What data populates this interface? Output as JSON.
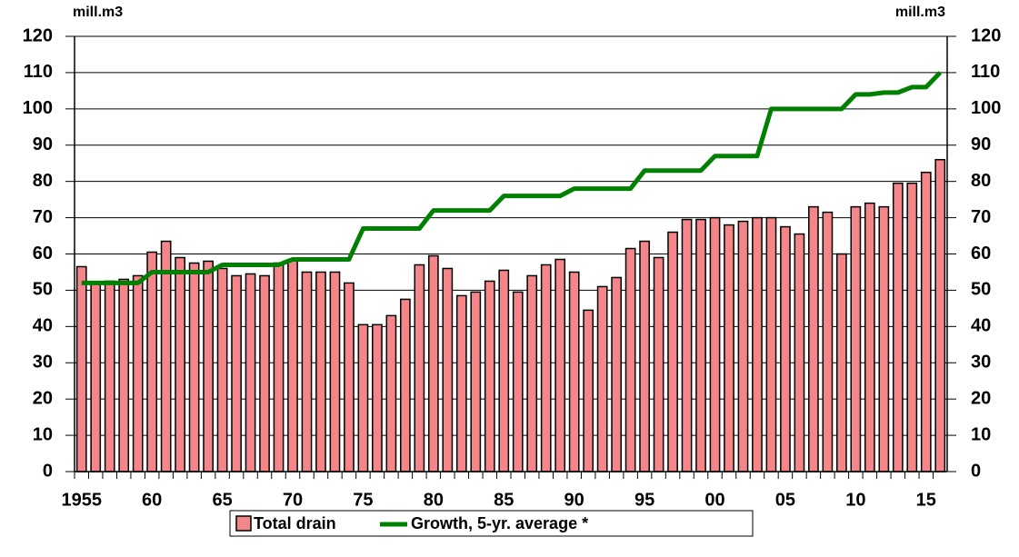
{
  "chart_data": {
    "type": "bar",
    "y_label": "mill.m3",
    "y2_label": "mill.m3",
    "categories": [
      "1955",
      null,
      null,
      null,
      null,
      "60",
      null,
      null,
      null,
      null,
      "65",
      null,
      null,
      null,
      null,
      "70",
      null,
      null,
      null,
      null,
      "75",
      null,
      null,
      null,
      null,
      "80",
      null,
      null,
      null,
      null,
      "85",
      null,
      null,
      null,
      null,
      "90",
      null,
      null,
      null,
      null,
      "95",
      null,
      null,
      null,
      null,
      "00",
      null,
      null,
      null,
      null,
      "05",
      null,
      null,
      null,
      null,
      "10",
      null,
      null,
      null,
      null,
      "15",
      null
    ],
    "series": [
      {
        "name": "Total drain",
        "type": "bar",
        "color": "#f4868a",
        "values": [
          56.5,
          52,
          52.5,
          53,
          54,
          60.5,
          63.5,
          59,
          57.5,
          58,
          56,
          54,
          54.5,
          54,
          57.5,
          58.5,
          55,
          55,
          55,
          52,
          40.5,
          40.5,
          43,
          47.5,
          57,
          59.5,
          56,
          48.5,
          49.5,
          52.5,
          55.5,
          49.5,
          54,
          57,
          58.5,
          55,
          44.5,
          51,
          53.5,
          61.5,
          63.5,
          59,
          66,
          69.5,
          69.5,
          70,
          68,
          69,
          70,
          70,
          67.5,
          65.5,
          73,
          71.5,
          60,
          73,
          74,
          73,
          79.5,
          79.5,
          82.5,
          86
        ]
      },
      {
        "name": "Growth, 5-yr. average *",
        "type": "line",
        "color": "#008000",
        "values": [
          52,
          52,
          52,
          52,
          52,
          55,
          55,
          55,
          55,
          55,
          57,
          57,
          57,
          57,
          57,
          58.5,
          58.5,
          58.5,
          58.5,
          58.5,
          67,
          67,
          67,
          67,
          67,
          72,
          72,
          72,
          72,
          72,
          76,
          76,
          76,
          76,
          76,
          78,
          78,
          78,
          78,
          78,
          83,
          83,
          83,
          83,
          83,
          87,
          87,
          87,
          87,
          100,
          100,
          100,
          100,
          100,
          100,
          104,
          104,
          104.5,
          104.5,
          106,
          106,
          110
        ]
      }
    ],
    "ylim": [
      0,
      120
    ],
    "yticks": [
      0,
      10,
      20,
      30,
      40,
      50,
      60,
      70,
      80,
      90,
      100,
      110,
      120
    ],
    "y2lim": [
      0,
      120
    ],
    "y2ticks": [
      0,
      10,
      20,
      30,
      40,
      50,
      60,
      70,
      80,
      90,
      100,
      110,
      120
    ],
    "grid": true
  }
}
